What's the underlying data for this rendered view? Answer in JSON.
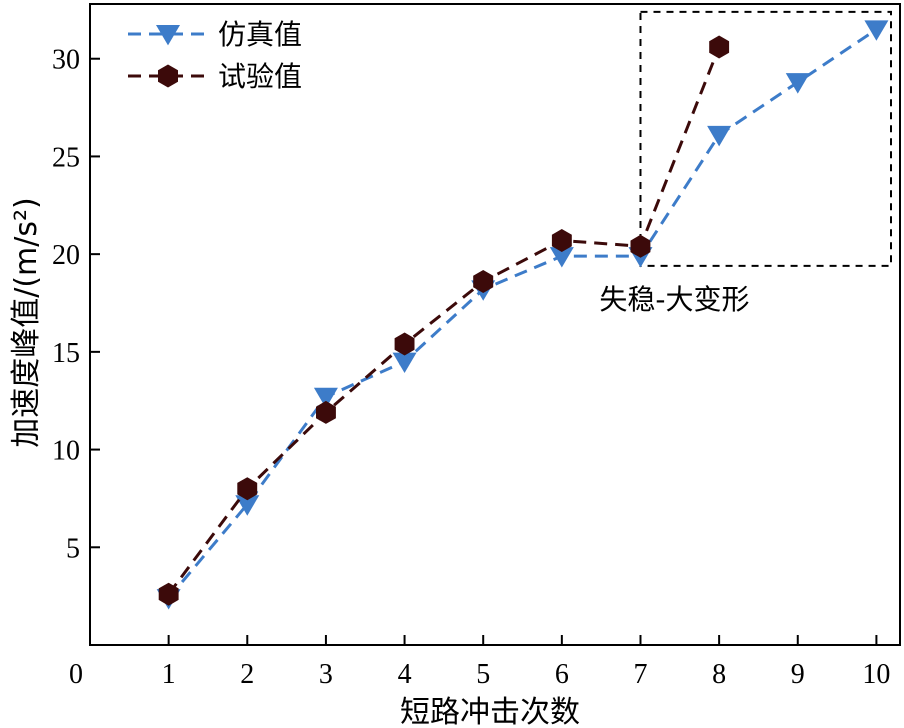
{
  "chart_data": {
    "type": "line",
    "xlabel": "短路冲击次数",
    "ylabel": "加速度峰值/(m/s²)",
    "xlim": [
      0,
      10.3
    ],
    "ylim": [
      0,
      32.8
    ],
    "xticks": [
      0,
      1,
      2,
      3,
      4,
      5,
      6,
      7,
      8,
      9,
      10
    ],
    "yticks": [
      5,
      10,
      15,
      20,
      25,
      30
    ],
    "legend_position": "top-left",
    "series": [
      {
        "name": "仿真值",
        "marker": "triangle-down",
        "color": "#3d7cc9",
        "x": [
          1,
          2,
          3,
          4,
          5,
          6,
          7,
          8,
          9,
          10
        ],
        "values": [
          2.4,
          7.2,
          12.7,
          14.5,
          18.2,
          19.9,
          19.9,
          26.1,
          28.8,
          31.5
        ]
      },
      {
        "name": "试验值",
        "marker": "hexagon",
        "color": "#3c0a0a",
        "x": [
          1,
          2,
          3,
          4,
          5,
          6,
          7,
          8
        ],
        "values": [
          2.6,
          8.0,
          11.9,
          15.4,
          18.6,
          20.7,
          20.4,
          30.6
        ]
      }
    ],
    "annotation": {
      "text": "失稳-大变形",
      "box_x": [
        7,
        10.3
      ],
      "box_y": [
        19.4,
        32.4
      ]
    }
  }
}
